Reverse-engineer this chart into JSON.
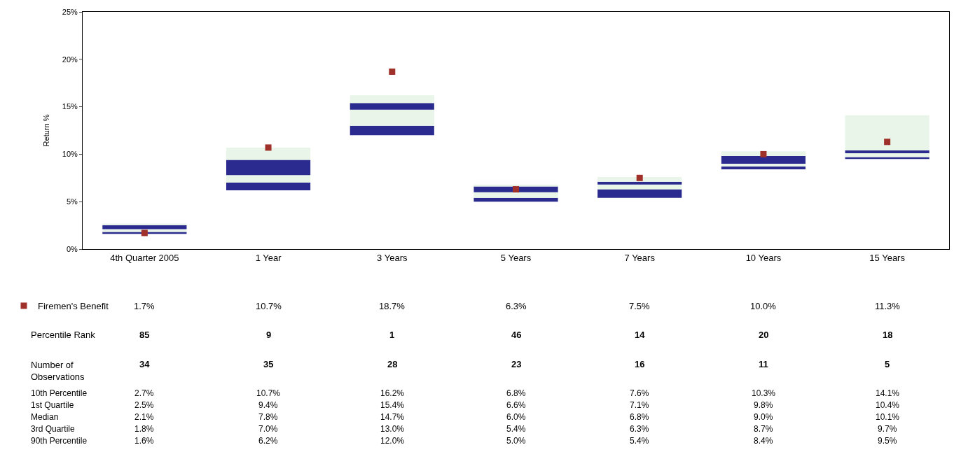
{
  "chart_data": [
    {
      "type": "bar",
      "ylabel": "Return %",
      "categories": [
        "4th Quarter 2005",
        "1 Year",
        "3 Years",
        "5 Years",
        "7 Years",
        "10 Years",
        "15 Years"
      ],
      "ylim": [
        0,
        25
      ],
      "yticks": [
        {
          "value": 0,
          "label": "0%"
        },
        {
          "value": 5,
          "label": "5%"
        },
        {
          "value": 10,
          "label": "10%"
        },
        {
          "value": 15,
          "label": "15%"
        },
        {
          "value": 20,
          "label": "20%"
        },
        {
          "value": 25,
          "label": "25%"
        }
      ],
      "legend": "bottom left",
      "series": [
        {
          "color": "#2b2b8f",
          "base": [
            1.6,
            6.2,
            12.0,
            5.0,
            5.4,
            8.4,
            9.5
          ],
          "values": [
            0.2,
            0.8,
            1.0,
            0.4,
            0.9,
            0.3,
            0.2
          ]
        },
        {
          "color": "#e8f5e8",
          "base": [
            1.8,
            7.0,
            13.0,
            5.4,
            6.3,
            8.7,
            9.7
          ],
          "values": [
            0.3,
            0.8,
            1.7,
            0.6,
            0.5,
            0.3,
            0.4
          ]
        },
        {
          "color": "#2b2b8f",
          "base": [
            2.1,
            7.8,
            14.7,
            6.0,
            6.8,
            9.0,
            10.1
          ],
          "values": [
            0.4,
            1.6,
            0.7,
            0.6,
            0.3,
            0.8,
            0.3
          ]
        },
        {
          "color": "#e8f5e8",
          "base": [
            2.5,
            9.4,
            15.4,
            6.6,
            7.1,
            9.8,
            10.4
          ],
          "values": [
            0.2,
            1.3,
            0.8,
            0.2,
            0.5,
            0.5,
            3.7
          ]
        },
        {
          "type": "scatter",
          "name": "Firemen's Benefit",
          "color": "#a0302a",
          "marker": "square",
          "values": [
            1.7,
            10.7,
            18.7,
            6.3,
            7.5,
            10.0,
            11.3
          ]
        }
      ]
    },
    {
      "type": "other",
      "y_categories": [
        null,
        "Percentile Rank",
        "Number of\nObservations",
        "10th Percentile",
        "1st Quartile",
        "Median",
        "3rd Quartile",
        "90th Percentile"
      ],
      "cell_labels": [
        [
          "1.7%",
          "10.7%",
          "18.7%",
          "6.3%",
          "7.5%",
          "10.0%",
          "11.3%"
        ],
        [
          "85",
          "9",
          "1",
          "46",
          "14",
          "20",
          "18"
        ],
        [
          "34",
          "35",
          "28",
          "23",
          "16",
          "11",
          "5"
        ],
        [
          "2.7%",
          "10.7%",
          "16.2%",
          "6.8%",
          "7.6%",
          "10.3%",
          "14.1%"
        ],
        [
          "2.5%",
          "9.4%",
          "15.4%",
          "6.6%",
          "7.1%",
          "9.8%",
          "10.4%"
        ],
        [
          "2.1%",
          "7.8%",
          "14.7%",
          "6.0%",
          "6.8%",
          "9.0%",
          "10.1%"
        ],
        [
          "1.8%",
          "7.0%",
          "13.0%",
          "5.4%",
          "6.3%",
          "8.7%",
          "9.7%"
        ],
        [
          "1.6%",
          "6.2%",
          "12.0%",
          "5.0%",
          "5.4%",
          "8.4%",
          "9.5%"
        ]
      ]
    }
  ]
}
